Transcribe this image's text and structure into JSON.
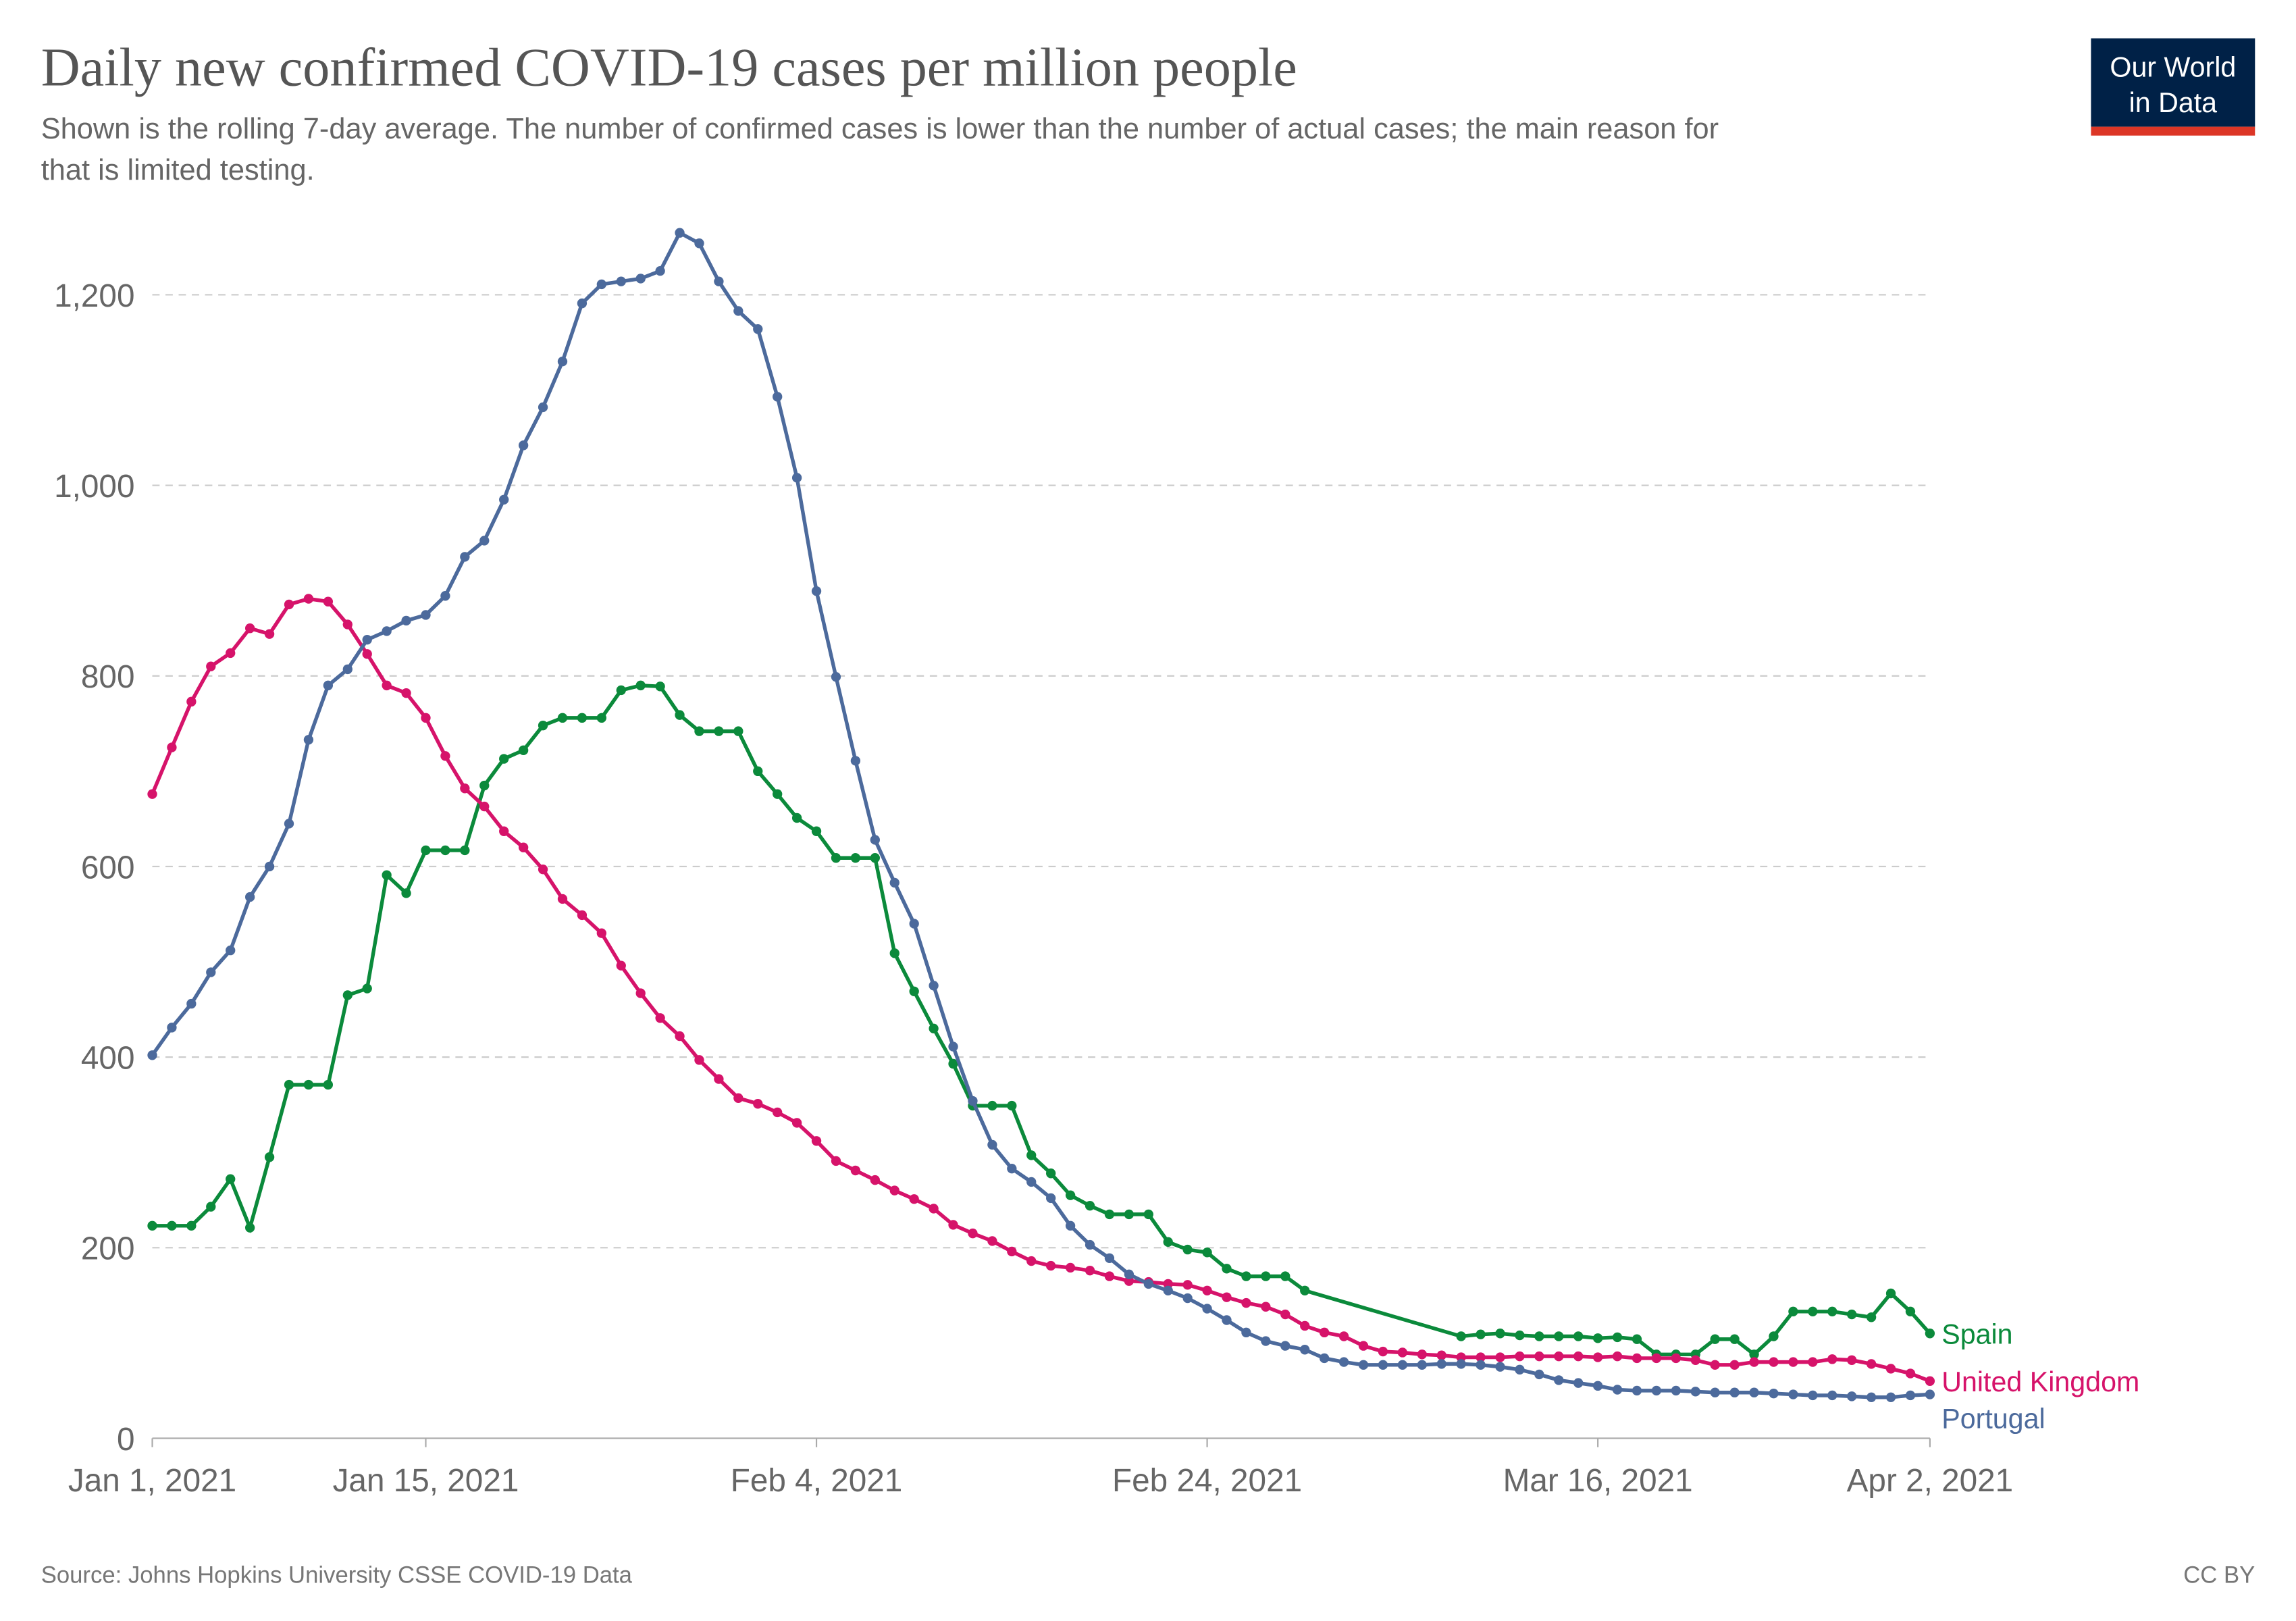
{
  "chart_data": {
    "type": "line",
    "title": "Daily new confirmed COVID-19 cases per million people",
    "subtitle": [
      "Shown is the rolling 7-day average. The number of confirmed cases is lower than the number of actual cases; the main reason for",
      "that is limited testing."
    ],
    "logo": [
      "Our World",
      "in Data"
    ],
    "source": "Source: Johns Hopkins University CSSE COVID-19 Data",
    "license": "CC BY",
    "grid": true,
    "ylim": [
      0,
      1265
    ],
    "yticks": [
      0,
      200,
      400,
      600,
      800,
      {
        "value": 1000,
        "label": "1,000"
      },
      {
        "value": 1200,
        "label": "1,200"
      }
    ],
    "xlim": [
      "2021-01-01",
      "2021-04-02"
    ],
    "xticks": [
      {
        "value": "2021-01-01",
        "label": "Jan 1, 2021"
      },
      {
        "value": "2021-01-15",
        "label": "Jan 15, 2021"
      },
      {
        "value": "2021-02-04",
        "label": "Feb 4, 2021"
      },
      {
        "value": "2021-02-24",
        "label": "Feb 24, 2021"
      },
      {
        "value": "2021-03-16",
        "label": "Mar 16, 2021"
      },
      {
        "value": "2021-04-02",
        "label": "Apr 2, 2021"
      }
    ],
    "x": [
      "2021-01-01",
      "2021-01-02",
      "2021-01-03",
      "2021-01-04",
      "2021-01-05",
      "2021-01-06",
      "2021-01-07",
      "2021-01-08",
      "2021-01-09",
      "2021-01-10",
      "2021-01-11",
      "2021-01-12",
      "2021-01-13",
      "2021-01-14",
      "2021-01-15",
      "2021-01-16",
      "2021-01-17",
      "2021-01-18",
      "2021-01-19",
      "2021-01-20",
      "2021-01-21",
      "2021-01-22",
      "2021-01-23",
      "2021-01-24",
      "2021-01-25",
      "2021-01-26",
      "2021-01-27",
      "2021-01-28",
      "2021-01-29",
      "2021-01-30",
      "2021-01-31",
      "2021-02-01",
      "2021-02-02",
      "2021-02-03",
      "2021-02-04",
      "2021-02-05",
      "2021-02-06",
      "2021-02-07",
      "2021-02-08",
      "2021-02-09",
      "2021-02-10",
      "2021-02-11",
      "2021-02-12",
      "2021-02-13",
      "2021-02-14",
      "2021-02-15",
      "2021-02-16",
      "2021-02-17",
      "2021-02-18",
      "2021-02-19",
      "2021-02-20",
      "2021-02-21",
      "2021-02-22",
      "2021-02-23",
      "2021-02-24",
      "2021-02-25",
      "2021-02-26",
      "2021-02-27",
      "2021-02-28",
      "2021-03-01",
      "2021-03-02",
      "2021-03-03",
      "2021-03-04",
      "2021-03-05",
      "2021-03-06",
      "2021-03-07",
      "2021-03-08",
      "2021-03-09",
      "2021-03-10",
      "2021-03-11",
      "2021-03-12",
      "2021-03-13",
      "2021-03-14",
      "2021-03-15",
      "2021-03-16",
      "2021-03-17",
      "2021-03-18",
      "2021-03-19",
      "2021-03-20",
      "2021-03-21",
      "2021-03-22",
      "2021-03-23",
      "2021-03-24",
      "2021-03-25",
      "2021-03-26",
      "2021-03-27",
      "2021-03-28",
      "2021-03-29",
      "2021-03-30",
      "2021-03-31",
      "2021-04-01",
      "2021-04-02"
    ],
    "series": [
      {
        "name": "Spain",
        "color": "#0b8a3b",
        "x": [
          "2021-01-01",
          "2021-01-02",
          "2021-01-03",
          "2021-01-04",
          "2021-01-05",
          "2021-01-06",
          "2021-01-07",
          "2021-01-08",
          "2021-01-09",
          "2021-01-10",
          "2021-01-11",
          "2021-01-12",
          "2021-01-13",
          "2021-01-14",
          "2021-01-15",
          "2021-01-16",
          "2021-01-17",
          "2021-01-18",
          "2021-01-19",
          "2021-01-20",
          "2021-01-21",
          "2021-01-22",
          "2021-01-23",
          "2021-01-24",
          "2021-01-25",
          "2021-01-26",
          "2021-01-27",
          "2021-01-28",
          "2021-01-29",
          "2021-01-30",
          "2021-01-31",
          "2021-02-01",
          "2021-02-02",
          "2021-02-03",
          "2021-02-04",
          "2021-02-05",
          "2021-02-06",
          "2021-02-07",
          "2021-02-08",
          "2021-02-09",
          "2021-02-10",
          "2021-02-11",
          "2021-02-12",
          "2021-02-13",
          "2021-02-14",
          "2021-02-15",
          "2021-02-16",
          "2021-02-17",
          "2021-02-18",
          "2021-02-19",
          "2021-02-20",
          "2021-02-21",
          "2021-02-22",
          "2021-02-23",
          "2021-02-24",
          "2021-02-25",
          "2021-02-26",
          "2021-02-27",
          "2021-02-28",
          "2021-03-01",
          "2021-03-09",
          "2021-03-10",
          "2021-03-11",
          "2021-03-12",
          "2021-03-13",
          "2021-03-14",
          "2021-03-15",
          "2021-03-16",
          "2021-03-17",
          "2021-03-18",
          "2021-03-19",
          "2021-03-20",
          "2021-03-21",
          "2021-03-22",
          "2021-03-23",
          "2021-03-24",
          "2021-03-25",
          "2021-03-26",
          "2021-03-27",
          "2021-03-28",
          "2021-03-29",
          "2021-03-30",
          "2021-03-31",
          "2021-04-01",
          "2021-04-02"
        ],
        "values": [
          223,
          223,
          223,
          243,
          272,
          221,
          295,
          371,
          371,
          371,
          465,
          472,
          591,
          572,
          617,
          617,
          617,
          685,
          713,
          722,
          748,
          756,
          756,
          756,
          785,
          790,
          789,
          759,
          742,
          742,
          742,
          700,
          676,
          651,
          637,
          609,
          609,
          609,
          509,
          469,
          430,
          393,
          349,
          349,
          349,
          297,
          278,
          255,
          244,
          235,
          235,
          235,
          206,
          198,
          195,
          178,
          170,
          170,
          170,
          155,
          107,
          109,
          110,
          108,
          107,
          107,
          107,
          105,
          106,
          104,
          88,
          88,
          88,
          104,
          104,
          88,
          107,
          133,
          133,
          133,
          130,
          127,
          152,
          133,
          110
        ]
      },
      {
        "name": "United Kingdom",
        "color": "#d6136a",
        "values": [
          676,
          725,
          773,
          810,
          824,
          850,
          844,
          875,
          881,
          878,
          854,
          823,
          790,
          782,
          756,
          716,
          682,
          663,
          637,
          620,
          597,
          566,
          549,
          530,
          496,
          467,
          441,
          422,
          397,
          377,
          357,
          351,
          342,
          331,
          312,
          291,
          281,
          271,
          260,
          251,
          241,
          224,
          215,
          207,
          196,
          186,
          181,
          179,
          176,
          170,
          165,
          164,
          162,
          161,
          155,
          148,
          142,
          138,
          130,
          118,
          111,
          107,
          97,
          91,
          90,
          88,
          87,
          85,
          85,
          85,
          86,
          86,
          86,
          86,
          85,
          86,
          84,
          84,
          84,
          82,
          77,
          77,
          80,
          80,
          80,
          80,
          83,
          82,
          78,
          73,
          68,
          60
        ]
      },
      {
        "name": "Portugal",
        "color": "#4c6a9c",
        "values": [
          402,
          431,
          456,
          489,
          512,
          568,
          600,
          645,
          733,
          790,
          807,
          838,
          847,
          858,
          864,
          884,
          925,
          942,
          985,
          1042,
          1082,
          1130,
          1191,
          1211,
          1214,
          1217,
          1225,
          1265,
          1254,
          1214,
          1183,
          1164,
          1093,
          1008,
          889,
          799,
          711,
          628,
          583,
          540,
          475,
          411,
          354,
          308,
          283,
          269,
          252,
          223,
          203,
          189,
          172,
          162,
          155,
          147,
          136,
          124,
          111,
          102,
          97,
          93,
          84,
          80,
          77,
          77,
          77,
          77,
          78,
          78,
          77,
          75,
          72,
          67,
          61,
          58,
          55,
          51,
          50,
          50,
          50,
          49,
          48,
          48,
          48,
          47,
          46,
          45,
          45,
          44,
          43,
          43,
          45,
          46
        ]
      }
    ]
  }
}
